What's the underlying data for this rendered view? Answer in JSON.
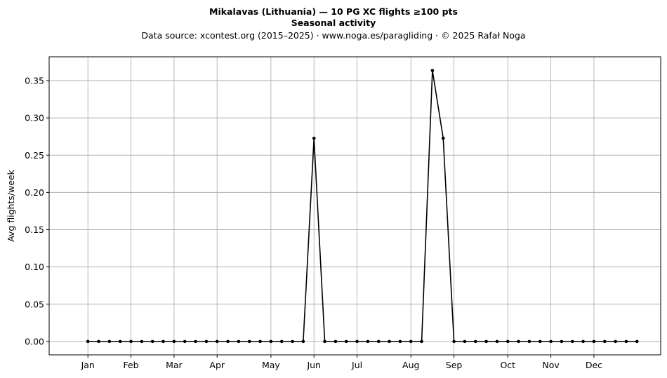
{
  "chart_data": {
    "type": "line",
    "title": "Mikalavas (Lithuania)  —  10 PG XC flights ≥100 pts",
    "subtitle": "Seasonal activity",
    "source": "Data source: xcontest.org (2015–2025)  ·  www.noga.es/paragliding  ·  © 2025 Rafał Noga",
    "xlabel": "",
    "ylabel": "Avg flights/week",
    "ylim": [
      -0.018,
      0.382
    ],
    "yticks": [
      0.0,
      0.05,
      0.1,
      0.15,
      0.2,
      0.25,
      0.3,
      0.35
    ],
    "ytick_labels": [
      "0.00",
      "0.05",
      "0.10",
      "0.15",
      "0.20",
      "0.25",
      "0.30",
      "0.35"
    ],
    "xlim": [
      -2.6,
      54.2
    ],
    "xticks": [
      1,
      5,
      9,
      13,
      18,
      22,
      26,
      31,
      35,
      40,
      44,
      48
    ],
    "xtick_labels": [
      "Jan",
      "Feb",
      "Mar",
      "Apr",
      "May",
      "Jun",
      "Jul",
      "Aug",
      "Sep",
      "Oct",
      "Nov",
      "Dec"
    ],
    "grid": true,
    "series": [
      {
        "color": "#000000",
        "x": [
          1,
          2,
          3,
          4,
          5,
          6,
          7,
          8,
          9,
          10,
          11,
          12,
          13,
          14,
          15,
          16,
          17,
          18,
          19,
          20,
          21,
          22,
          23,
          24,
          25,
          26,
          27,
          28,
          29,
          30,
          31,
          32,
          33,
          34,
          35,
          36,
          37,
          38,
          39,
          40,
          41,
          42,
          43,
          44,
          45,
          46,
          47,
          48,
          49,
          50,
          51,
          52
        ],
        "values": [
          0,
          0,
          0,
          0,
          0,
          0,
          0,
          0,
          0,
          0,
          0,
          0,
          0,
          0,
          0,
          0,
          0,
          0,
          0,
          0,
          0,
          0.2727,
          0,
          0,
          0,
          0,
          0,
          0,
          0,
          0,
          0,
          0,
          0.3636,
          0.2727,
          0,
          0,
          0,
          0,
          0,
          0,
          0,
          0,
          0,
          0,
          0,
          0,
          0,
          0,
          0,
          0,
          0,
          0
        ]
      }
    ]
  }
}
